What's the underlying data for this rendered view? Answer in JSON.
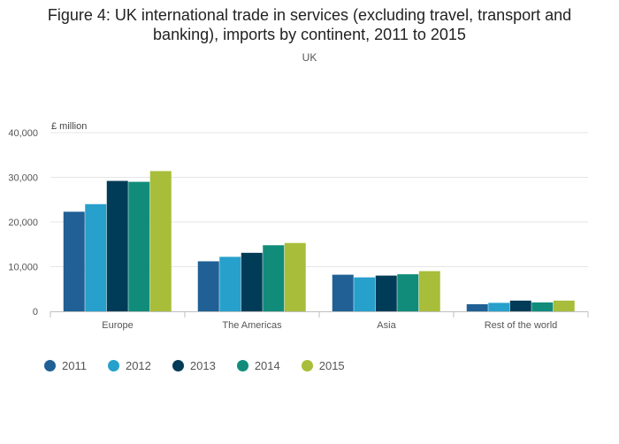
{
  "chart_data": {
    "type": "bar",
    "title_lines": [
      "Figure 4: UK international trade in services (excluding travel, transport and",
      "banking), imports by continent, 2011 to 2015"
    ],
    "subtitle": "UK",
    "ylabel": "£ million",
    "xlabel": "",
    "ylim": [
      0,
      40000
    ],
    "yticks": [
      0,
      10000,
      20000,
      30000,
      40000
    ],
    "ytick_labels": [
      "0",
      "10,000",
      "20,000",
      "30,000",
      "40,000"
    ],
    "grid": true,
    "legend_position": "bottom-left",
    "categories": [
      "Europe",
      "The Americas",
      "Asia",
      "Rest of the world"
    ],
    "series": [
      {
        "name": "2011",
        "color": "#206095",
        "values": [
          22300,
          11200,
          8200,
          1600
        ]
      },
      {
        "name": "2012",
        "color": "#27a0cc",
        "values": [
          24000,
          12200,
          7600,
          1900
        ]
      },
      {
        "name": "2013",
        "color": "#003c57",
        "values": [
          29200,
          13100,
          8000,
          2400
        ]
      },
      {
        "name": "2014",
        "color": "#118c7b",
        "values": [
          29000,
          14800,
          8300,
          2000
        ]
      },
      {
        "name": "2015",
        "color": "#a8bd3a",
        "values": [
          31400,
          15300,
          9000,
          2400
        ]
      }
    ]
  }
}
